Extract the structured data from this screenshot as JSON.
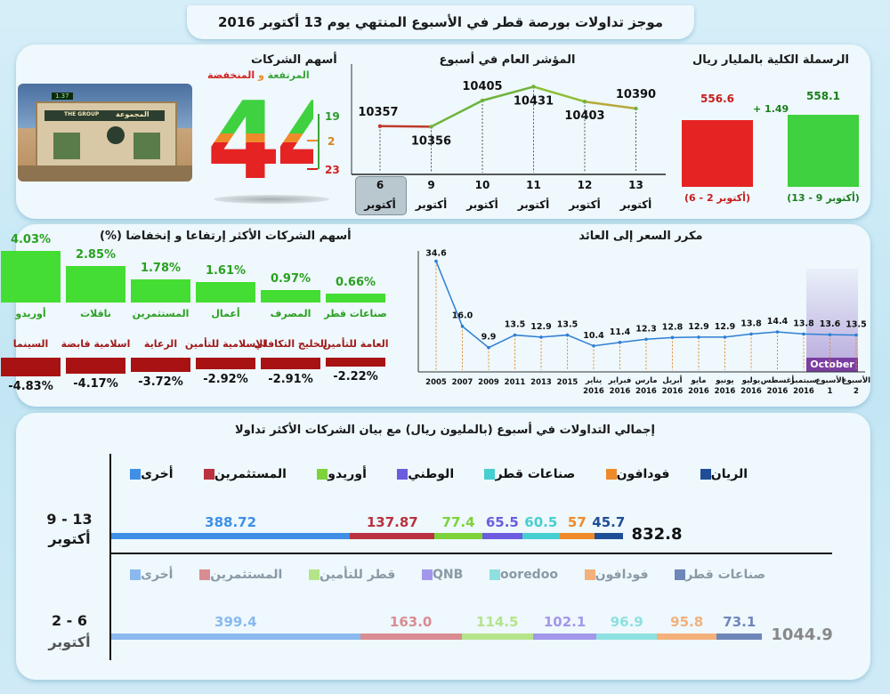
{
  "header": {
    "title": "موجز تداولات بورصة قطر في الأسبوع المنتهي يوم 13 أكتوبر 2016"
  },
  "cap": {
    "title": "الرسملة الكلية بالمليار ريال",
    "prev": {
      "value": "556.6",
      "label": "(أكتوبر 2 - 6)",
      "color": "#e52323"
    },
    "curr": {
      "value": "558.1",
      "label": "(أكتوبر 9 - 13)",
      "color": "#3fd13f"
    },
    "delta": "+ 1.49"
  },
  "index": {
    "title": "المؤشر العام في أسبوع",
    "days": [
      "6",
      "9",
      "10",
      "11",
      "12",
      "13"
    ],
    "month": "أكتوبر",
    "values_text": [
      "10357",
      "10356",
      "10405",
      "10431",
      "10403",
      "10390"
    ]
  },
  "companies": {
    "title": "أسهم الشركات",
    "sub_up": "المرتفعة",
    "sub_and": "و",
    "sub_down": "المنخفضة",
    "total": "44",
    "up": "19",
    "same": "2",
    "down": "23",
    "photo_text": "المجموعة",
    "photo_text_en": "THE GROUP",
    "ticker": "1.37"
  },
  "movers": {
    "title": "أسهم الشركات الأكثر إرتفاعا و إنخفاضا (%)",
    "up": [
      {
        "name": "صناعات قطر",
        "value": "0.66%",
        "v": 0.66
      },
      {
        "name": "المصرف",
        "value": "0.97%",
        "v": 0.97
      },
      {
        "name": "أعمال",
        "value": "1.61%",
        "v": 1.61
      },
      {
        "name": "المستثمرين",
        "value": "1.78%",
        "v": 1.78
      },
      {
        "name": "ناقلات",
        "value": "2.85%",
        "v": 2.85
      },
      {
        "name": "أوريدو",
        "value": "4.03%",
        "v": 4.03
      }
    ],
    "down": [
      {
        "name": "العامة للتأمين",
        "value": "-2.22%",
        "v": -2.22
      },
      {
        "name": "الخليج التكافلي",
        "value": "-2.91%",
        "v": -2.91
      },
      {
        "name": "الاسلامية للتأمين",
        "value": "-2.92%",
        "v": -2.92
      },
      {
        "name": "الرعاية",
        "value": "-3.72%",
        "v": -3.72
      },
      {
        "name": "اسلامية قابضة",
        "value": "-4.17%",
        "v": -4.17
      },
      {
        "name": "السينما",
        "value": "-4.83%",
        "v": -4.83
      }
    ]
  },
  "pe": {
    "title": "مكرر السعر إلى العائد",
    "labels": [
      [
        "2005"
      ],
      [
        "2007"
      ],
      [
        "2009"
      ],
      [
        "2011"
      ],
      [
        "2013"
      ],
      [
        "2015"
      ],
      [
        "يناير",
        "2016"
      ],
      [
        "فبراير",
        "2016"
      ],
      [
        "مارس",
        "2016"
      ],
      [
        "أبريل",
        "2016"
      ],
      [
        "مايو",
        "2016"
      ],
      [
        "يونيو",
        "2016"
      ],
      [
        "يوليو",
        "2016"
      ],
      [
        "أغسطس",
        "2016"
      ],
      [
        "سبتمبر",
        "2016"
      ],
      [
        "الأسبوع",
        "1"
      ],
      [
        "الأسبوع",
        "2"
      ]
    ],
    "values_text": [
      "34.6",
      "16.0",
      "9.9",
      "13.5",
      "12.9",
      "13.5",
      "10.4",
      "11.4",
      "12.3",
      "12.8",
      "12.9",
      "12.9",
      "13.8",
      "14.4",
      "13.8",
      "13.6",
      "13.5"
    ],
    "october": "October"
  },
  "trading": {
    "title": "إجمالي التداولات في أسبوع (بالمليون ريال) مع  بيان الشركات الأكثر تداولا",
    "week_curr": {
      "label_top": "9 - 13",
      "label_bottom": "أكتوبر",
      "total": "832.8",
      "legend": [
        {
          "name": "الريان",
          "color": "#1f4e96"
        },
        {
          "name": "فودافون",
          "color": "#ef8a2a"
        },
        {
          "name": "صناعات قطر",
          "color": "#46cfd0"
        },
        {
          "name": "الوطني",
          "color": "#6c5ce0"
        },
        {
          "name": "أوريدو",
          "color": "#7ed23a"
        },
        {
          "name": "المستثمرين",
          "color": "#b8323f"
        },
        {
          "name": "أخرى",
          "color": "#3f8fe6"
        }
      ],
      "segments": [
        {
          "value": "388.72",
          "v": 388.72,
          "color": "#3f8fe6"
        },
        {
          "value": "137.87",
          "v": 137.87,
          "color": "#b8323f"
        },
        {
          "value": "77.4",
          "v": 77.4,
          "color": "#7ed23a"
        },
        {
          "value": "65.5",
          "v": 65.5,
          "color": "#6c5ce0"
        },
        {
          "value": "60.5",
          "v": 60.5,
          "color": "#46cfd0"
        },
        {
          "value": "57",
          "v": 57,
          "color": "#ef8a2a"
        },
        {
          "value": "45.7",
          "v": 45.7,
          "color": "#1f4e96"
        }
      ]
    },
    "week_prev": {
      "label_top": "2 - 6",
      "label_bottom": "أكتوبر",
      "total": "1044.9",
      "legend": [
        {
          "name": "صناعات قطر",
          "color": "#6f86b9"
        },
        {
          "name": "فودافون",
          "color": "#f3b07a"
        },
        {
          "name": "ooredoo",
          "color": "#8fe0e0"
        },
        {
          "name": "QNB",
          "color": "#a397ea"
        },
        {
          "name": "قطر للتأمين",
          "color": "#b5e48a"
        },
        {
          "name": "المستثمرين",
          "color": "#d98c92"
        },
        {
          "name": "أخرى",
          "color": "#8ab9ee"
        }
      ],
      "segments": [
        {
          "value": "399.4",
          "v": 399.4,
          "color": "#8ab9ee"
        },
        {
          "value": "163.0",
          "v": 163.0,
          "color": "#d98c92"
        },
        {
          "value": "114.5",
          "v": 114.5,
          "color": "#b5e48a"
        },
        {
          "value": "102.1",
          "v": 102.1,
          "color": "#a397ea"
        },
        {
          "value": "96.9",
          "v": 96.9,
          "color": "#8fe0e0"
        },
        {
          "value": "95.8",
          "v": 95.8,
          "color": "#f3b07a"
        },
        {
          "value": "73.1",
          "v": 73.1,
          "color": "#6f86b9"
        }
      ]
    }
  },
  "chart_data": [
    {
      "type": "bar",
      "title": "الرسملة الكلية بالمليار ريال",
      "categories": [
        "(أكتوبر 2 - 6)",
        "(أكتوبر 9 - 13)"
      ],
      "values": [
        556.6,
        558.1
      ]
    },
    {
      "type": "line",
      "title": "المؤشر العام في أسبوع",
      "x": [
        "6 أكتوبر",
        "9 أكتوبر",
        "10 أكتوبر",
        "11 أكتوبر",
        "12 أكتوبر",
        "13 أكتوبر"
      ],
      "values": [
        10357,
        10356,
        10405,
        10431,
        10403,
        10390
      ]
    },
    {
      "type": "bar",
      "title": "أسهم الشركات الأكثر إرتفاعا و إنخفاضا (%)",
      "categories": [
        "صناعات قطر",
        "المصرف",
        "أعمال",
        "المستثمرين",
        "ناقلات",
        "أوريدو",
        "العامة للتأمين",
        "الخليج التكافلي",
        "الاسلامية للتأمين",
        "الرعاية",
        "اسلامية قابضة",
        "السينما"
      ],
      "values": [
        0.66,
        0.97,
        1.61,
        1.78,
        2.85,
        4.03,
        -2.22,
        -2.91,
        -2.92,
        -3.72,
        -4.17,
        -4.83
      ]
    },
    {
      "type": "line",
      "title": "مكرر السعر إلى العائد",
      "x": [
        "2005",
        "2007",
        "2009",
        "2011",
        "2013",
        "2015",
        "يناير 2016",
        "فبراير 2016",
        "مارس 2016",
        "أبريل 2016",
        "مايو 2016",
        "يونيو 2016",
        "يوليو 2016",
        "أغسطس 2016",
        "سبتمبر 2016",
        "الأسبوع 1",
        "الأسبوع 2"
      ],
      "values": [
        34.6,
        16.0,
        9.9,
        13.5,
        12.9,
        13.5,
        10.4,
        11.4,
        12.3,
        12.8,
        12.9,
        12.9,
        13.8,
        14.4,
        13.8,
        13.6,
        13.5
      ]
    },
    {
      "type": "bar",
      "title": "إجمالي التداولات في أسبوع (بالمليون ريال) مع  بيان الشركات الأكثر تداولا",
      "series": [
        {
          "name": "9 - 13 أكتوبر",
          "categories": [
            "الريان",
            "فودافون",
            "صناعات قطر",
            "الوطني",
            "أوريدو",
            "المستثمرين",
            "أخرى"
          ],
          "values": [
            45.7,
            57,
            60.5,
            65.5,
            77.4,
            137.87,
            388.72
          ],
          "total": 832.8
        },
        {
          "name": "2 - 6 أكتوبر",
          "categories": [
            "صناعات قطر",
            "فودافون",
            "ooredoo",
            "QNB",
            "قطر للتأمين",
            "المستثمرين",
            "أخرى"
          ],
          "values": [
            73.1,
            95.8,
            96.9,
            102.1,
            114.5,
            163.0,
            399.4
          ],
          "total": 1044.9
        }
      ]
    }
  ]
}
